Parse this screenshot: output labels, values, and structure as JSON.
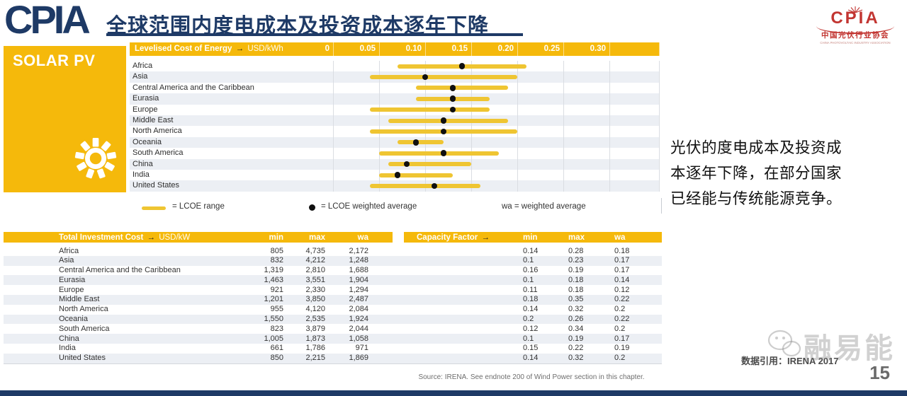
{
  "slide": {
    "logo_text": "CPIA",
    "title": "全球范围内度电成本及投资成本逐年下降",
    "page_number": "15"
  },
  "org_badge": {
    "name": "CPIA",
    "cn": "中国光伏行业协会",
    "en": "CHINA PHOTOVOLTAIC INDUSTRY ASSOCIATION"
  },
  "panel": {
    "label": "SOLAR PV"
  },
  "chart_data": {
    "type": "range-dot",
    "title": "Levelised Cost of Energy",
    "arrow": "→",
    "unit": "USD/kWh",
    "xlim": [
      0,
      0.35
    ],
    "ticks": [
      0,
      0.05,
      0.1,
      0.15,
      0.2,
      0.25,
      0.3
    ],
    "tick_labels": [
      "0",
      "0.05",
      "0.10",
      "0.15",
      "0.20",
      "0.25",
      "0.30"
    ],
    "categories": [
      "Africa",
      "Asia",
      "Central America and the Caribbean",
      "Eurasia",
      "Europe",
      "Middle East",
      "North America",
      "Oceania",
      "South America",
      "China",
      "India",
      "United States"
    ],
    "series": [
      {
        "name": "LCOE range",
        "min": [
          0.07,
          0.04,
          0.09,
          0.09,
          0.04,
          0.06,
          0.04,
          0.07,
          0.05,
          0.06,
          0.05,
          0.04
        ],
        "max": [
          0.21,
          0.2,
          0.19,
          0.17,
          0.17,
          0.19,
          0.2,
          0.12,
          0.18,
          0.15,
          0.13,
          0.16
        ]
      },
      {
        "name": "LCOE weighted average",
        "values": [
          0.14,
          0.1,
          0.13,
          0.13,
          0.13,
          0.12,
          0.12,
          0.09,
          0.12,
          0.08,
          0.07,
          0.11
        ]
      }
    ],
    "legend": [
      {
        "label": "= LCOE range"
      },
      {
        "label": "= LCOE weighted average"
      },
      {
        "label": "wa = weighted average"
      }
    ]
  },
  "table": {
    "section1_title": "Total Investment Cost",
    "section1_unit": "USD/kW",
    "section2_title": "Capacity Factor",
    "arrow": "→",
    "col_headers": [
      "min",
      "max",
      "wa"
    ],
    "rows": [
      {
        "region": "Africa",
        "inv": [
          "805",
          "4,735",
          "2,172"
        ],
        "cf": [
          "0.14",
          "0.28",
          "0.18"
        ]
      },
      {
        "region": "Asia",
        "inv": [
          "832",
          "4,212",
          "1,248"
        ],
        "cf": [
          "0.1",
          "0.23",
          "0.17"
        ]
      },
      {
        "region": "Central America and the Caribbean",
        "inv": [
          "1,319",
          "2,810",
          "1,688"
        ],
        "cf": [
          "0.16",
          "0.19",
          "0.17"
        ]
      },
      {
        "region": "Eurasia",
        "inv": [
          "1,463",
          "3,551",
          "1,904"
        ],
        "cf": [
          "0.1",
          "0.18",
          "0.14"
        ]
      },
      {
        "region": "Europe",
        "inv": [
          "921",
          "2,330",
          "1,294"
        ],
        "cf": [
          "0.11",
          "0.18",
          "0.12"
        ]
      },
      {
        "region": "Middle East",
        "inv": [
          "1,201",
          "3,850",
          "2,487"
        ],
        "cf": [
          "0.18",
          "0.35",
          "0.22"
        ]
      },
      {
        "region": "North America",
        "inv": [
          "955",
          "4,120",
          "2,084"
        ],
        "cf": [
          "0.14",
          "0.32",
          "0.2"
        ]
      },
      {
        "region": "Oceania",
        "inv": [
          "1,550",
          "2,535",
          "1,924"
        ],
        "cf": [
          "0.2",
          "0.26",
          "0.22"
        ]
      },
      {
        "region": "South America",
        "inv": [
          "823",
          "3,879",
          "2,044"
        ],
        "cf": [
          "0.12",
          "0.34",
          "0.2"
        ]
      },
      {
        "region": "China",
        "inv": [
          "1,005",
          "1,873",
          "1,058"
        ],
        "cf": [
          "0.1",
          "0.19",
          "0.17"
        ]
      },
      {
        "region": "India",
        "inv": [
          "661",
          "1,786",
          "971"
        ],
        "cf": [
          "0.15",
          "0.22",
          "0.19"
        ]
      },
      {
        "region": "United States",
        "inv": [
          "850",
          "2,215",
          "1,869"
        ],
        "cf": [
          "0.14",
          "0.32",
          "0.2"
        ]
      }
    ]
  },
  "source_note": "Source: IRENA. See endnote 200 of Wind Power section in this chapter.",
  "annotation": {
    "lines": [
      "光伏的度电成本及投资成",
      "本逐年下降，在部分国家",
      "已经能与传统能源竞争。"
    ]
  },
  "footer": {
    "citation": "数据引用：IRENA 2017",
    "watermark": "融易能"
  },
  "colors": {
    "navy": "#1E3A66",
    "yellow": "#F5B90B",
    "bar_yellow": "#EFC532",
    "stripe": "#ECEFF4",
    "red": "#C23531"
  }
}
